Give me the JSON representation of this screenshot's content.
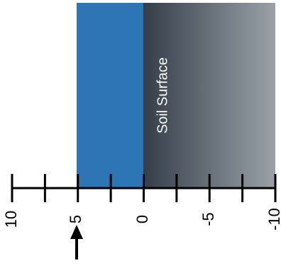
{
  "diagram": {
    "scale": {
      "min": -10,
      "max": 10,
      "ticks": [
        "10",
        "7.5",
        "5",
        "2.5",
        "0",
        "-2.5",
        "-5",
        "-7.5",
        "-10"
      ],
      "labels": [
        "10",
        "5",
        "0",
        "-5",
        "-10"
      ]
    },
    "water_region": {
      "from": 5,
      "to": 0,
      "color": "#2e75b6"
    },
    "soil_region": {
      "from": 0,
      "to": -10,
      "label": "Soil Surface",
      "gradient_start": "#353d4a",
      "gradient_end": "#9aa2a8"
    },
    "pointer": {
      "value": 5,
      "direction": "up",
      "icon": "up-arrow-icon"
    }
  }
}
